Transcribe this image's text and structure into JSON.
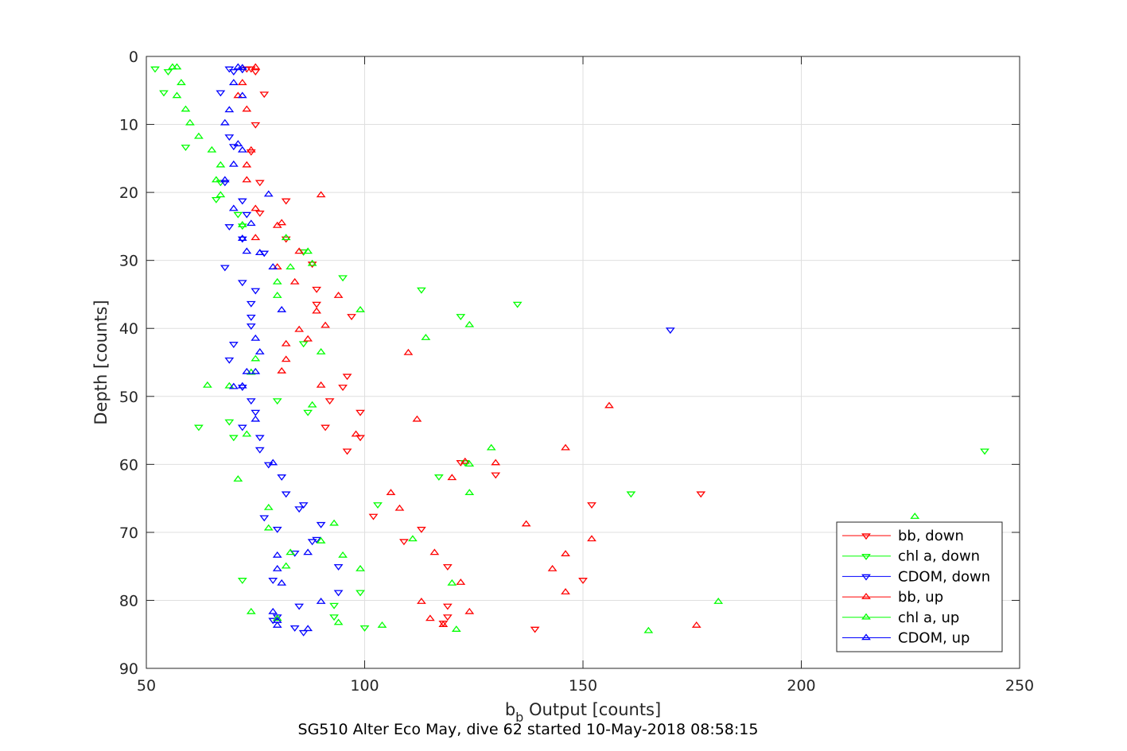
{
  "chart_data": {
    "type": "scatter",
    "title": "",
    "xlabel": "b",
    "xlabel_sub": "b",
    "xlabel_rest": " Output [counts]",
    "ylabel": "Depth [counts]",
    "caption": "SG510 Alter Eco May, dive 62 started 10-May-2018 08:58:15",
    "xlim": [
      50,
      250
    ],
    "ylim": [
      0,
      90
    ],
    "y_reversed": true,
    "xticks": [
      "50",
      "100",
      "150",
      "200",
      "250"
    ],
    "yticks": [
      "0",
      "10",
      "20",
      "30",
      "40",
      "50",
      "60",
      "70",
      "80",
      "90"
    ],
    "grid": true,
    "legend_position": "lower-right",
    "series": [
      {
        "name": "bb, down",
        "color": "#ff0000",
        "marker": "triangle-down",
        "points": [
          [
            73,
            1.8
          ],
          [
            74,
            1.8
          ],
          [
            75,
            2.2
          ],
          [
            77,
            5.5
          ],
          [
            75,
            10
          ],
          [
            74,
            14
          ],
          [
            76,
            18.5
          ],
          [
            82,
            21.2
          ],
          [
            76,
            23
          ],
          [
            82,
            26.8
          ],
          [
            86,
            28.7
          ],
          [
            88,
            30.5
          ],
          [
            89,
            34.2
          ],
          [
            89,
            36.4
          ],
          [
            97,
            38.2
          ],
          [
            91,
            54.5
          ],
          [
            99,
            52.3
          ],
          [
            92,
            50.6
          ],
          [
            95,
            48.6
          ],
          [
            96,
            47
          ],
          [
            96,
            58
          ],
          [
            99,
            56
          ],
          [
            122,
            59.7
          ],
          [
            130,
            61.5
          ],
          [
            102,
            67.6
          ],
          [
            113,
            69.5
          ],
          [
            109,
            71.3
          ],
          [
            119,
            75
          ],
          [
            119,
            80.8
          ],
          [
            119,
            82.4
          ],
          [
            118,
            83.3
          ],
          [
            139,
            84.2
          ],
          [
            152,
            65.9
          ],
          [
            177,
            64.3
          ],
          [
            150,
            77
          ]
        ]
      },
      {
        "name": "chl a, down",
        "color": "#00ff00",
        "marker": "triangle-down",
        "points": [
          [
            52,
            1.8
          ],
          [
            55,
            2.2
          ],
          [
            54,
            5.3
          ],
          [
            59,
            13.3
          ],
          [
            67,
            18.5
          ],
          [
            66,
            21
          ],
          [
            71,
            23.2
          ],
          [
            72,
            24.9
          ],
          [
            86,
            28.7
          ],
          [
            95,
            32.5
          ],
          [
            113,
            34.3
          ],
          [
            135,
            36.4
          ],
          [
            122,
            38.2
          ],
          [
            86,
            42.2
          ],
          [
            87,
            52.3
          ],
          [
            80,
            50.6
          ],
          [
            62,
            54.5
          ],
          [
            70,
            56
          ],
          [
            69,
            53.7
          ],
          [
            242,
            58
          ],
          [
            117,
            61.8
          ],
          [
            123,
            59.7
          ],
          [
            103,
            65.9
          ],
          [
            161,
            64.3
          ],
          [
            72,
            77
          ],
          [
            93,
            80.7
          ],
          [
            93,
            82.4
          ],
          [
            99,
            78.8
          ],
          [
            100,
            84
          ]
        ]
      },
      {
        "name": "CDOM, down",
        "color": "#0000ff",
        "marker": "triangle-down",
        "points": [
          [
            69,
            1.8
          ],
          [
            70,
            2.2
          ],
          [
            72,
            1.9
          ],
          [
            67,
            5.3
          ],
          [
            69,
            11.8
          ],
          [
            70,
            13.2
          ],
          [
            68,
            18.5
          ],
          [
            72,
            21.2
          ],
          [
            73,
            23.2
          ],
          [
            69,
            25
          ],
          [
            72,
            26.8
          ],
          [
            77,
            28.9
          ],
          [
            68,
            31
          ],
          [
            72,
            33.2
          ],
          [
            75,
            34.4
          ],
          [
            74,
            36.3
          ],
          [
            74,
            38.3
          ],
          [
            74,
            39.6
          ],
          [
            70,
            42.3
          ],
          [
            69,
            44.6
          ],
          [
            72,
            48.6
          ],
          [
            74,
            50.6
          ],
          [
            75,
            52.3
          ],
          [
            72,
            54.5
          ],
          [
            76,
            56
          ],
          [
            76,
            57.8
          ],
          [
            78,
            60
          ],
          [
            81,
            61.8
          ],
          [
            82,
            64.3
          ],
          [
            86,
            65.9
          ],
          [
            85,
            66.5
          ],
          [
            77,
            67.8
          ],
          [
            80,
            69.5
          ],
          [
            90,
            68.8
          ],
          [
            88,
            71.3
          ],
          [
            89,
            71
          ],
          [
            84,
            73
          ],
          [
            94,
            75
          ],
          [
            79,
            77
          ],
          [
            94,
            78.8
          ],
          [
            85,
            80.8
          ],
          [
            80,
            82.4
          ],
          [
            79,
            82.9
          ],
          [
            84,
            84
          ],
          [
            86,
            84.7
          ],
          [
            170,
            40.2
          ]
        ]
      },
      {
        "name": "bb, up",
        "color": "#ff0000",
        "marker": "triangle-up",
        "points": [
          [
            75,
            1.6
          ],
          [
            72,
            3.9
          ],
          [
            71,
            5.8
          ],
          [
            73,
            7.8
          ],
          [
            74,
            13.8
          ],
          [
            73,
            16
          ],
          [
            73,
            18.2
          ],
          [
            90,
            20.4
          ],
          [
            75,
            22.4
          ],
          [
            81,
            24.5
          ],
          [
            75,
            26.7
          ],
          [
            80,
            24.9
          ],
          [
            85,
            28.7
          ],
          [
            80,
            31
          ],
          [
            84,
            33.2
          ],
          [
            94,
            35.2
          ],
          [
            89,
            37.5
          ],
          [
            91,
            39.6
          ],
          [
            85,
            40.2
          ],
          [
            87,
            41.6
          ],
          [
            82,
            42.3
          ],
          [
            82,
            44.6
          ],
          [
            110,
            43.6
          ],
          [
            81,
            46.3
          ],
          [
            90,
            48.4
          ],
          [
            156,
            51.4
          ],
          [
            112,
            53.4
          ],
          [
            98,
            55.6
          ],
          [
            146,
            57.6
          ],
          [
            123,
            59.6
          ],
          [
            130,
            59.8
          ],
          [
            120,
            62
          ],
          [
            106,
            64.2
          ],
          [
            108,
            66.5
          ],
          [
            137,
            68.8
          ],
          [
            152,
            71
          ],
          [
            116,
            73
          ],
          [
            146,
            73.2
          ],
          [
            143,
            75.4
          ],
          [
            122,
            77.4
          ],
          [
            146,
            78.8
          ],
          [
            113,
            80.2
          ],
          [
            124,
            81.7
          ],
          [
            115,
            82.7
          ],
          [
            118,
            83.6
          ],
          [
            176,
            83.7
          ]
        ]
      },
      {
        "name": "chl a, up",
        "color": "#00ff00",
        "marker": "triangle-up",
        "points": [
          [
            56,
            1.6
          ],
          [
            57,
            1.6
          ],
          [
            58,
            3.9
          ],
          [
            57,
            5.8
          ],
          [
            59,
            7.8
          ],
          [
            60,
            9.8
          ],
          [
            62,
            11.8
          ],
          [
            65,
            13.8
          ],
          [
            67,
            16
          ],
          [
            66,
            18.2
          ],
          [
            67,
            20.4
          ],
          [
            72,
            24.8
          ],
          [
            82,
            26.7
          ],
          [
            87,
            28.7
          ],
          [
            88,
            30.5
          ],
          [
            83,
            31
          ],
          [
            80,
            33.2
          ],
          [
            80,
            35.2
          ],
          [
            99,
            37.3
          ],
          [
            124,
            39.5
          ],
          [
            114,
            41.4
          ],
          [
            90,
            43.5
          ],
          [
            75,
            44.5
          ],
          [
            74,
            46.5
          ],
          [
            64,
            48.4
          ],
          [
            69,
            48.5
          ],
          [
            88,
            51.3
          ],
          [
            73,
            55.6
          ],
          [
            129,
            57.6
          ],
          [
            124,
            60
          ],
          [
            71,
            62.2
          ],
          [
            124,
            64.2
          ],
          [
            78,
            66.4
          ],
          [
            226,
            67.7
          ],
          [
            93,
            68.7
          ],
          [
            78,
            69.4
          ],
          [
            90,
            71.3
          ],
          [
            111,
            71
          ],
          [
            83,
            73
          ],
          [
            95,
            73.4
          ],
          [
            82,
            75
          ],
          [
            99,
            75.4
          ],
          [
            120,
            77.5
          ],
          [
            181,
            80.2
          ],
          [
            74,
            81.7
          ],
          [
            80,
            82.7
          ],
          [
            94,
            83.3
          ],
          [
            104,
            83.7
          ],
          [
            121,
            84.3
          ],
          [
            165,
            84.5
          ]
        ]
      },
      {
        "name": "CDOM, up",
        "color": "#0000ff",
        "marker": "triangle-up",
        "points": [
          [
            71,
            1.6
          ],
          [
            72,
            1.7
          ],
          [
            70,
            3.9
          ],
          [
            72,
            5.8
          ],
          [
            69,
            7.9
          ],
          [
            68,
            9.8
          ],
          [
            71,
            12.9
          ],
          [
            72,
            13.8
          ],
          [
            70,
            15.9
          ],
          [
            68,
            18.2
          ],
          [
            78,
            20.3
          ],
          [
            70,
            22.4
          ],
          [
            74,
            24.6
          ],
          [
            72,
            26.8
          ],
          [
            76,
            28.9
          ],
          [
            73,
            28.7
          ],
          [
            79,
            31
          ],
          [
            81,
            37.3
          ],
          [
            75,
            41.5
          ],
          [
            76,
            43.5
          ],
          [
            73,
            46.4
          ],
          [
            75,
            46.4
          ],
          [
            72,
            48.5
          ],
          [
            70,
            48.6
          ],
          [
            75,
            53.4
          ],
          [
            79,
            59.8
          ],
          [
            87,
            73
          ],
          [
            80,
            73.4
          ],
          [
            80,
            75.4
          ],
          [
            81,
            77.5
          ],
          [
            90,
            80.2
          ],
          [
            79,
            81.7
          ],
          [
            80,
            83
          ],
          [
            80,
            83.7
          ],
          [
            87,
            84.2
          ]
        ]
      }
    ]
  }
}
